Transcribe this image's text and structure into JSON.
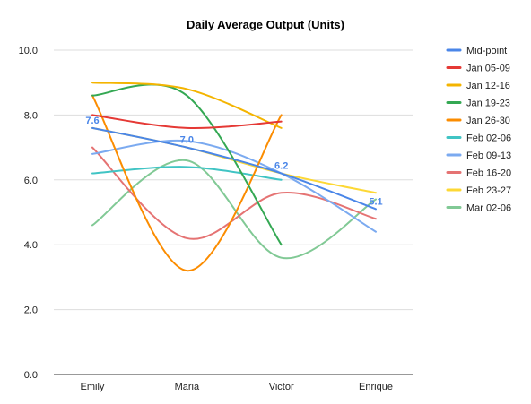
{
  "chart_data": {
    "type": "line",
    "title": "Daily Average Output (Units)",
    "xlabel": "",
    "ylabel": "",
    "categories": [
      "Emily",
      "Maria",
      "Victor",
      "Enrique"
    ],
    "ylim": [
      0,
      10
    ],
    "yticks": [
      "0.0",
      "2.0",
      "4.0",
      "6.0",
      "8.0",
      "10.0"
    ],
    "ytick_values": [
      0,
      2,
      4,
      6,
      8,
      10
    ],
    "grid": true,
    "smooth": true,
    "legend_position": "right",
    "series": [
      {
        "name": "Mid-point",
        "color": "#4a86e8",
        "values": [
          7.6,
          7.0,
          6.2,
          5.1
        ],
        "labels": [
          "7.6",
          "7.0",
          "6.2",
          "5.1"
        ]
      },
      {
        "name": "Jan 05-09",
        "color": "#e53935",
        "values": [
          8.0,
          7.6,
          7.8,
          null
        ]
      },
      {
        "name": "Jan 12-16",
        "color": "#f4b400",
        "values": [
          9.0,
          8.8,
          7.6,
          null
        ]
      },
      {
        "name": "Jan 19-23",
        "color": "#34a853",
        "values": [
          8.6,
          8.6,
          4.0,
          null
        ]
      },
      {
        "name": "Jan 26-30",
        "color": "#fb8c00",
        "values": [
          8.6,
          3.2,
          8.0,
          null
        ]
      },
      {
        "name": "Feb 02-06",
        "color": "#40c4c4",
        "values": [
          6.2,
          6.4,
          6.0,
          null
        ]
      },
      {
        "name": "Feb 09-13",
        "color": "#7baaf0",
        "values": [
          6.8,
          7.2,
          6.2,
          4.4
        ]
      },
      {
        "name": "Feb 16-20",
        "color": "#e57373",
        "values": [
          7.0,
          4.2,
          5.6,
          4.8
        ]
      },
      {
        "name": "Feb 23-27",
        "color": "#fdd835",
        "values": [
          7.6,
          7.0,
          6.2,
          5.6
        ]
      },
      {
        "name": "Mar 02-06",
        "color": "#81c995",
        "values": [
          4.6,
          6.6,
          3.6,
          5.4
        ]
      }
    ]
  }
}
